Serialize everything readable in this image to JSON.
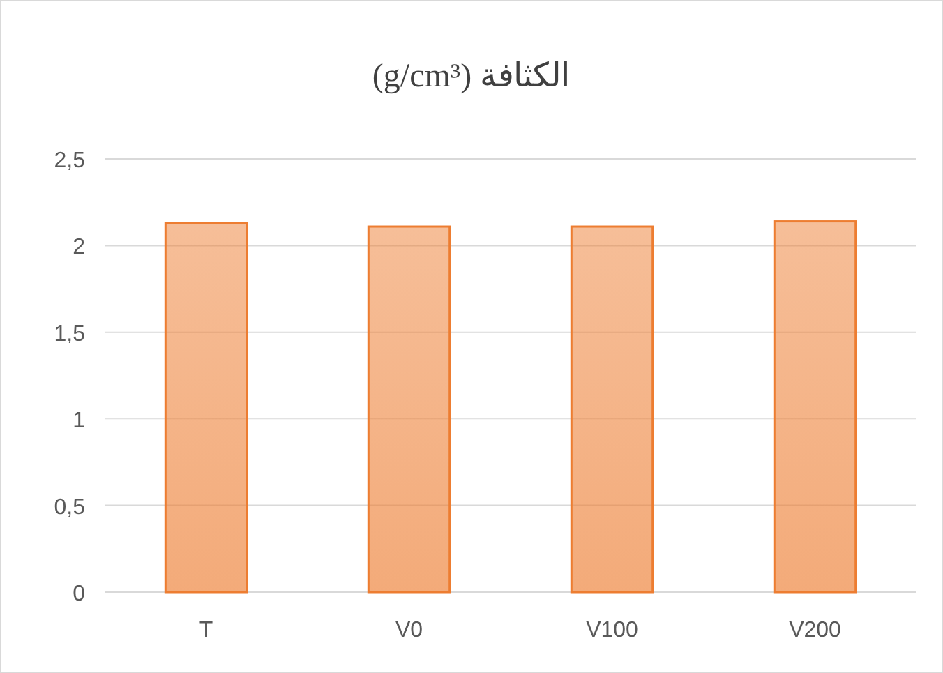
{
  "chart_data": {
    "type": "bar",
    "title": "الكثافة (g/cm³)",
    "categories": [
      "T",
      "V0",
      "V100",
      "V200"
    ],
    "values": [
      2.13,
      2.11,
      2.11,
      2.14
    ],
    "color": "#ed7d31",
    "ylim": [
      0,
      2.5
    ],
    "yticks": [
      0,
      {
        "value": 0.5,
        "label": "0,5"
      },
      1,
      {
        "value": 1.5,
        "label": "1,5"
      },
      2,
      {
        "value": 2.5,
        "label": "2,5"
      }
    ],
    "grid": "y"
  }
}
